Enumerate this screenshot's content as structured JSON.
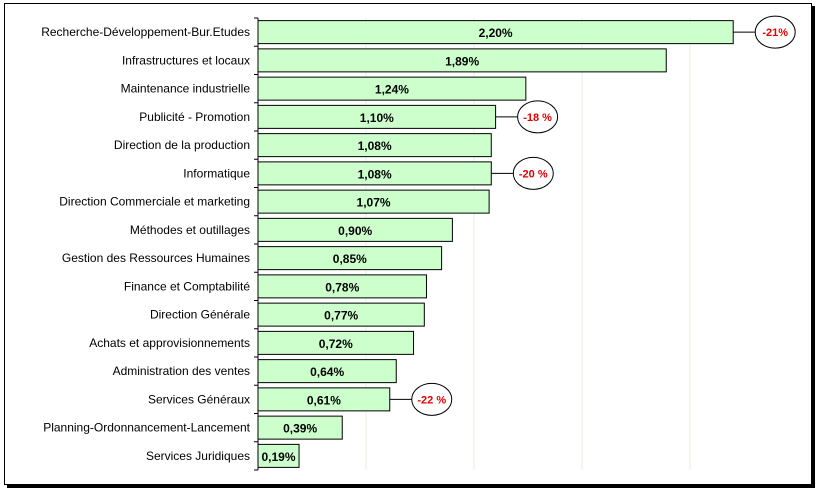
{
  "chart_data": {
    "type": "bar",
    "orientation": "horizontal",
    "categories": [
      "Recherche-Développement-Bur.Etudes",
      "Infrastructures et locaux",
      "Maintenance industrielle",
      "Publicité - Promotion",
      "Direction de la production",
      "Informatique",
      "Direction Commerciale et marketing",
      "Méthodes et outillages",
      "Gestion des Ressources Humaines",
      "Finance et Comptabilité",
      "Direction Générale",
      "Achats et approvisionnements",
      "Administration des ventes",
      "Services Généraux",
      "Planning-Ordonnancement-Lancement",
      "Services Juridiques"
    ],
    "values": [
      2.2,
      1.89,
      1.24,
      1.1,
      1.08,
      1.08,
      1.07,
      0.9,
      0.85,
      0.78,
      0.77,
      0.72,
      0.64,
      0.61,
      0.39,
      0.19
    ],
    "value_labels": [
      "2,20%",
      "1,89%",
      "1,24%",
      "1,10%",
      "1,08%",
      "1,08%",
      "1,07%",
      "0,90%",
      "0,85%",
      "0,78%",
      "0,77%",
      "0,72%",
      "0,64%",
      "0,61%",
      "0,39%",
      "0,19%"
    ],
    "xlim": [
      0,
      2.5
    ],
    "grid": true,
    "legend": "none",
    "bar_color": "#ccffcc",
    "annotations": [
      {
        "category_index": 0,
        "text": "-21%"
      },
      {
        "category_index": 3,
        "text": "-18 %"
      },
      {
        "category_index": 5,
        "text": "-20 %"
      },
      {
        "category_index": 13,
        "text": "-22 %"
      }
    ]
  }
}
